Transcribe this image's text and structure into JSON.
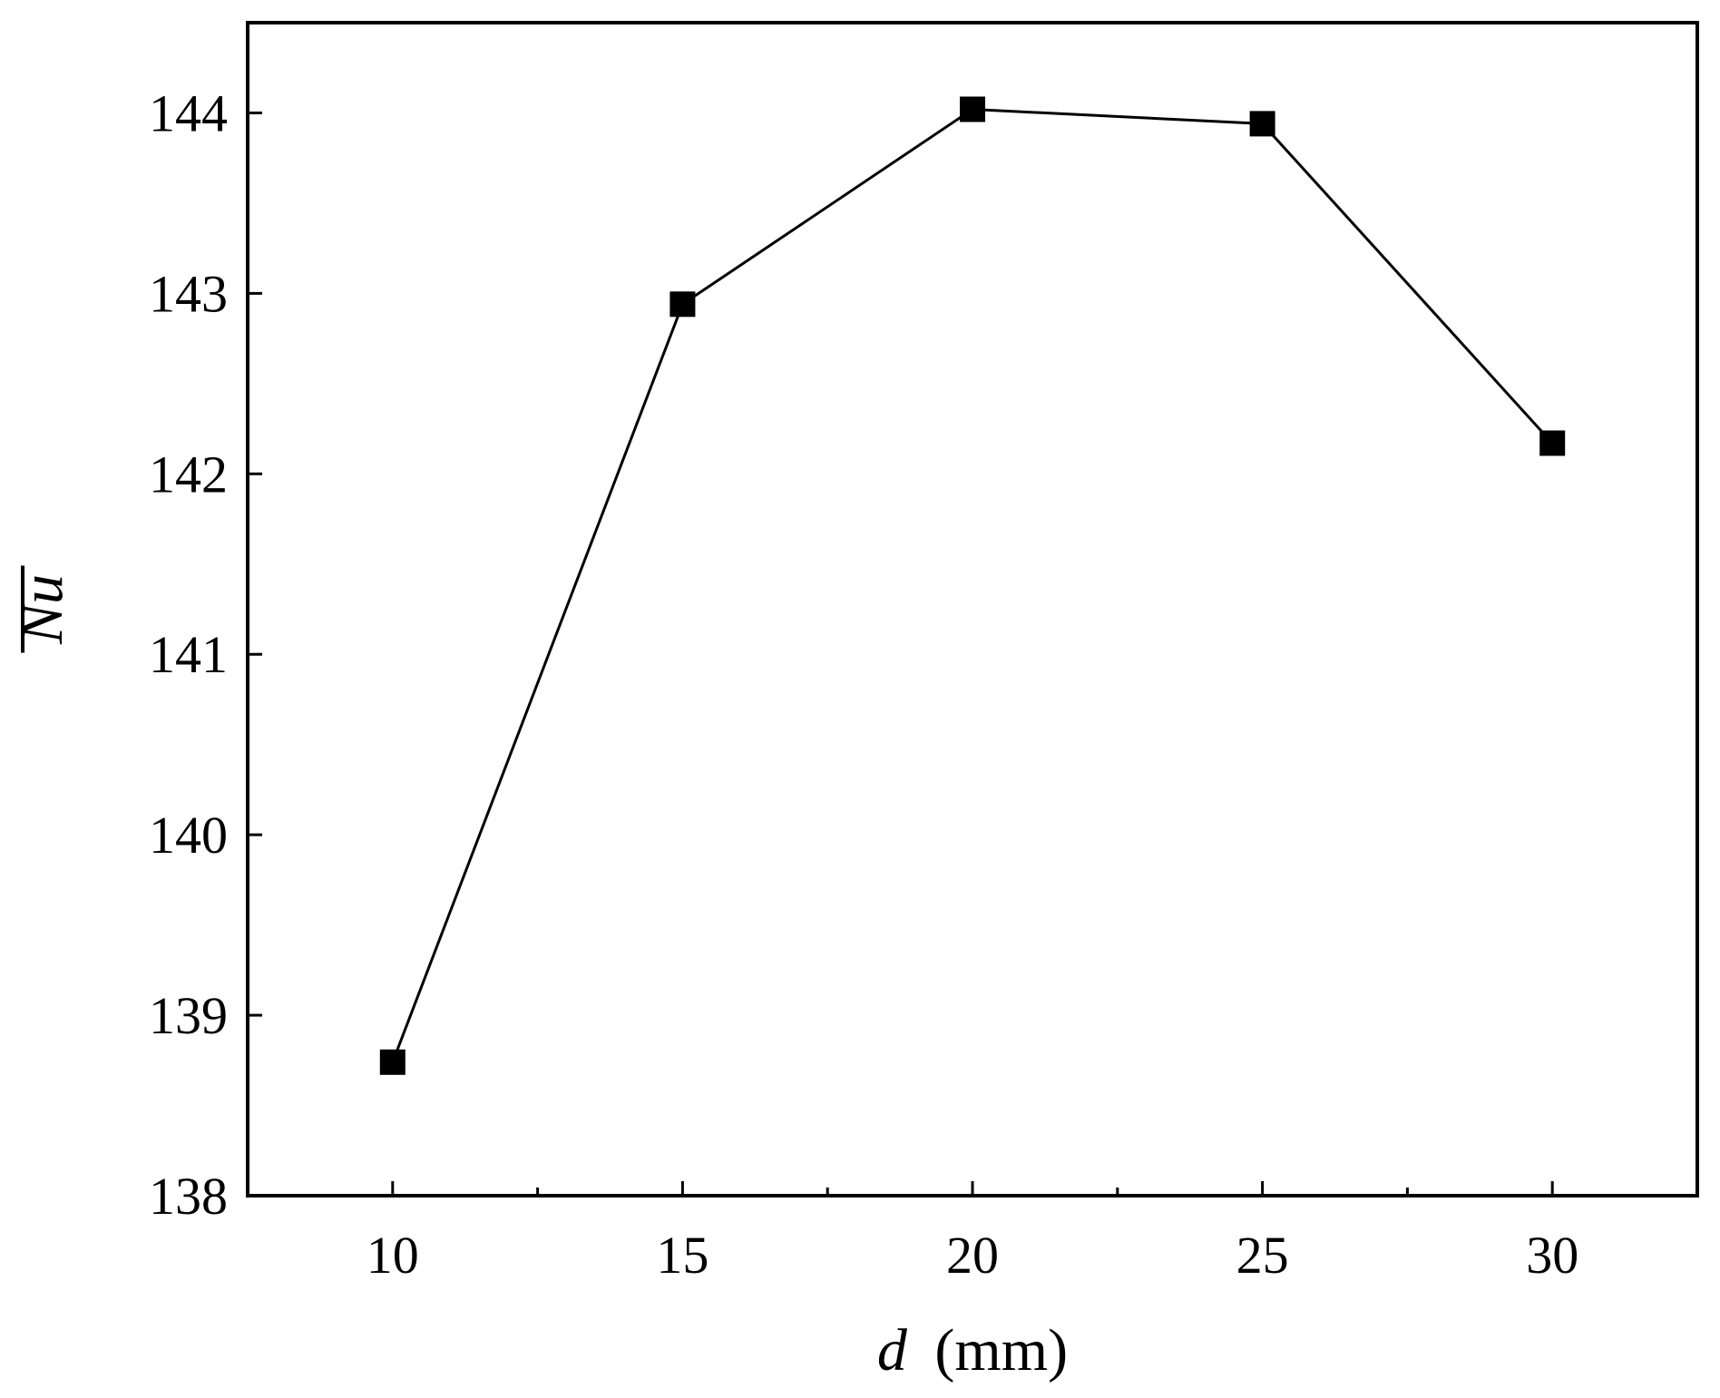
{
  "chart_data": {
    "type": "line",
    "title": "",
    "xlabel": {
      "variable": "d",
      "unit": "(mm)"
    },
    "ylabel": "Nu",
    "ylabel_overline": true,
    "xlim": [
      7.5,
      32.5
    ],
    "ylim": [
      138,
      144.5
    ],
    "x_ticks": [
      "10",
      "15",
      "20",
      "25",
      "30"
    ],
    "y_ticks": [
      "138",
      "139",
      "140",
      "141",
      "142",
      "143",
      "144"
    ],
    "x_minor_ticks": [
      12.5,
      17.5,
      22.5,
      27.5
    ],
    "grid": false,
    "marker": "square",
    "line_color": "#000000",
    "series": [
      {
        "x": [
          10,
          15,
          20,
          25,
          30
        ],
        "y": [
          138.74,
          142.94,
          144.02,
          143.94,
          142.17
        ]
      }
    ]
  }
}
